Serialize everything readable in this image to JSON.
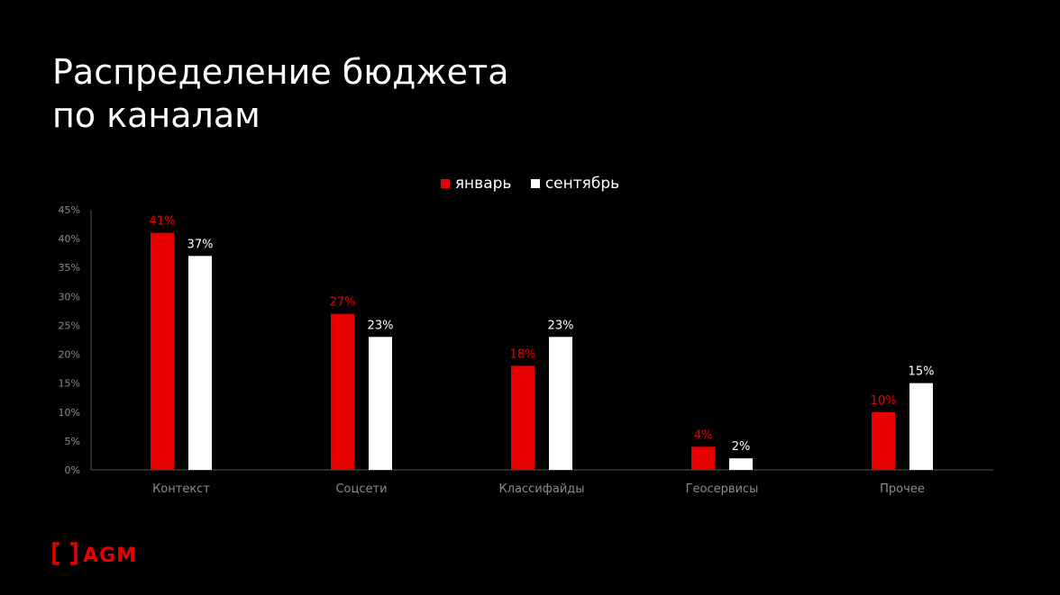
{
  "title": "Распределение бюджета\nпо каналам",
  "logo": "[ ] AGM",
  "colors": {
    "background": "#000000",
    "january": "#e60000",
    "september": "#ffffff",
    "axis_text": "#8c8c8c"
  },
  "chart_data": {
    "type": "bar",
    "categories": [
      "Контекст",
      "Соцсети",
      "Классифайды",
      "Геосервисы",
      "Прочее"
    ],
    "series": [
      {
        "name": "январь",
        "values": [
          41,
          27,
          18,
          4,
          10
        ],
        "labels": [
          "41%",
          "27%",
          "18%",
          "4%",
          "10%"
        ]
      },
      {
        "name": "сентябрь",
        "values": [
          37,
          23,
          23,
          2,
          15
        ],
        "labels": [
          "37%",
          "23%",
          "23%",
          "2%",
          "15%"
        ]
      }
    ],
    "ylim": [
      0,
      45
    ],
    "yticks": [
      "0%",
      "5%",
      "10%",
      "15%",
      "20%",
      "25%",
      "30%",
      "35%",
      "40%",
      "45%"
    ],
    "grid": false,
    "legend": "top-center"
  }
}
